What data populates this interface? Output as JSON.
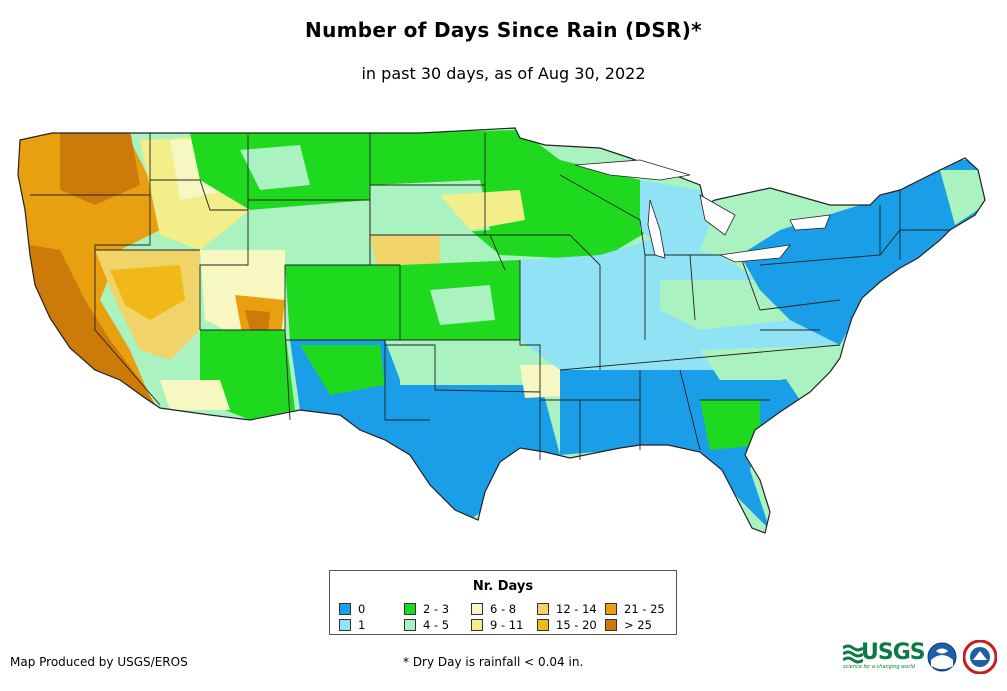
{
  "title": "Number of Days Since Rain (DSR)*",
  "subtitle": "in past 30 days, as of Aug 30, 2022",
  "legend": {
    "title": "Nr. Days",
    "items": [
      {
        "label": "0",
        "color": "#1a9ee8"
      },
      {
        "label": "1",
        "color": "#8fe3f5"
      },
      {
        "label": "2 - 3",
        "color": "#1ed91e"
      },
      {
        "label": "4 - 5",
        "color": "#aaf2c0"
      },
      {
        "label": "6 - 8",
        "color": "#f7f7c2"
      },
      {
        "label": "9 - 11",
        "color": "#f2ee8a"
      },
      {
        "label": "12 - 14",
        "color": "#f0d46a"
      },
      {
        "label": "15 - 20",
        "color": "#f0b818"
      },
      {
        "label": "21 - 25",
        "color": "#e8a010"
      },
      {
        "label": "> 25",
        "color": "#cc7a0a"
      }
    ]
  },
  "credit": "Map Produced by USGS/EROS",
  "footnote": "* Dry Day is rainfall < 0.04 in.",
  "logos": {
    "usgs": "USGS",
    "usgs_tagline": "science for a changing world",
    "noaa": "NOAA",
    "nws": "National Weather Service"
  }
}
